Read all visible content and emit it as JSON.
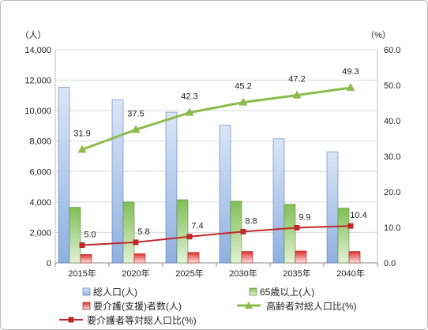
{
  "chart_data": {
    "type": "bar",
    "categories": [
      "2015年",
      "2020年",
      "2025年",
      "2030年",
      "2035年",
      "2040年"
    ],
    "y_left": {
      "unit_label": "（人）",
      "ylim": [
        0,
        14000
      ],
      "ticks": [
        "0",
        "2,000",
        "4,000",
        "6,000",
        "8,000",
        "10,000",
        "12,000",
        "14,000"
      ]
    },
    "y_right": {
      "unit_label": "（%）",
      "ylim": [
        0,
        60
      ],
      "ticks": [
        "0.0",
        "10.0",
        "20.0",
        "30.0",
        "40.0",
        "50.0",
        "60.0"
      ]
    },
    "grid": true,
    "legend_position": "bottom",
    "series": [
      {
        "name": "総人口(人)",
        "type": "bar",
        "axis": "left",
        "color": "#a9c4ea",
        "values": [
          11550,
          10700,
          9900,
          9050,
          8150,
          7300
        ]
      },
      {
        "name": "65歳以上(人)",
        "type": "bar",
        "axis": "left",
        "color": "#8cc764",
        "values": [
          3650,
          4000,
          4150,
          4050,
          3850,
          3600
        ]
      },
      {
        "name": "要介護(支援)者数(人)",
        "type": "bar",
        "axis": "left",
        "color": "#e0302a",
        "values": [
          550,
          600,
          690,
          750,
          780,
          750
        ]
      },
      {
        "name": "高齢者対総人口比(%)",
        "type": "line",
        "axis": "right",
        "color": "#8cbb4c",
        "values": [
          31.9,
          37.5,
          42.3,
          45.2,
          47.2,
          49.3
        ],
        "labels": [
          "31.9",
          "37.5",
          "42.3",
          "45.2",
          "47.2",
          "49.3"
        ]
      },
      {
        "name": "要介護者等対総人口比(%)",
        "type": "line",
        "axis": "right",
        "color": "#c0282a",
        "values": [
          5.0,
          5.8,
          7.4,
          8.8,
          9.9,
          10.4
        ],
        "labels": [
          "5.0",
          "5.8",
          "7.4",
          "8.8",
          "9.9",
          "10.4"
        ]
      }
    ]
  }
}
